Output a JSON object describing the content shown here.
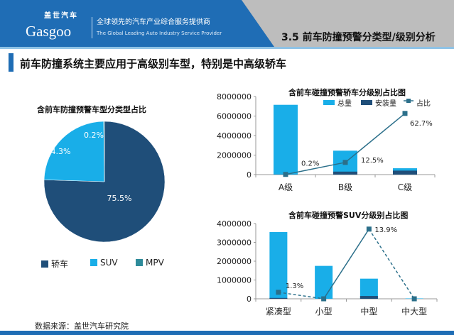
{
  "header": {
    "logo_cn": "盖世汽车",
    "logo_en": "Gasgoo",
    "tagline_cn": "全球领先的汽车产业综合服务提供商",
    "tagline_en": "The Global Leading Auto Industry Service Provider",
    "section_title": "3.5 前车防撞预警分类型/级别分析"
  },
  "subtitle": "前车防撞系统主要应用于高级别车型，特别是中高级轿车",
  "source": "数据来源：盖世汽车研究院",
  "colors": {
    "sedan": "#1f4e79",
    "suv": "#19aee8",
    "mpv": "#2e8b9a",
    "total": "#19aee8",
    "installed": "#1f4e79",
    "ratio": "#2b6f8a"
  },
  "chart_data": [
    {
      "type": "pie",
      "title": "含前车防撞预警车型分类型占比",
      "categories": [
        "轿车",
        "SUV",
        "MPV"
      ],
      "values": [
        75.5,
        24.3,
        0.2
      ],
      "labels": [
        "75.5%",
        "24.3%",
        "0.2%"
      ],
      "legend": "bottom"
    },
    {
      "type": "bar+line",
      "title": "含前车碰撞预警轿车分级别占比图",
      "categories": [
        "A级",
        "B级",
        "C级"
      ],
      "series": [
        {
          "name": "总量",
          "type": "bar",
          "values": [
            7150000,
            2450000,
            650000
          ]
        },
        {
          "name": "安装量",
          "type": "bar",
          "values": [
            14000,
            306000,
            408000
          ]
        },
        {
          "name": "占比",
          "type": "line",
          "axis": "secondary",
          "values": [
            0.2,
            12.5,
            62.7
          ],
          "labels": [
            "0.2%",
            "12.5%",
            "62.7%"
          ]
        }
      ],
      "ylim": [
        0,
        8000000
      ],
      "yticks": [
        "0",
        "2000000",
        "4000000",
        "6000000",
        "8000000"
      ],
      "y2lim": [
        0,
        80
      ],
      "legend": "top-right"
    },
    {
      "type": "bar+line",
      "title": "含前车碰撞预警SUV分级别占比图",
      "categories": [
        "紧凑型",
        "小型",
        "中型",
        "中大型"
      ],
      "series": [
        {
          "type": "bar",
          "values": [
            3550000,
            1750000,
            1070000,
            20000
          ]
        },
        {
          "type": "bar",
          "values": [
            46000,
            0,
            149000,
            0
          ]
        },
        {
          "type": "line",
          "axis": "secondary",
          "values": [
            1.3,
            0,
            13.9,
            0
          ],
          "labels": [
            "1.3%",
            "",
            "13.9%",
            ""
          ]
        }
      ],
      "ylim": [
        0,
        4000000
      ],
      "yticks": [
        "0",
        "1000000",
        "2000000",
        "3000000",
        "4000000"
      ],
      "y2lim": [
        0,
        15
      ]
    }
  ]
}
